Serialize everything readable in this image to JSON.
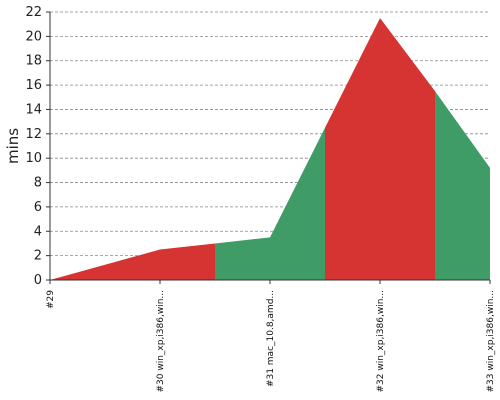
{
  "chart_data": {
    "type": "area",
    "ylabel": "mins",
    "ylim": [
      0,
      22
    ],
    "yticks": [
      0,
      2,
      4,
      6,
      8,
      10,
      12,
      14,
      16,
      18,
      20,
      22
    ],
    "grid": true,
    "categories": [
      "#29",
      "#30 win_xp,i386,win...",
      "#31 mac_10.8,amd...",
      "#32 win_xp,i386,win...",
      "#33 win_xp,i386,win..."
    ],
    "x": [
      0,
      1,
      1.5,
      2,
      2.5,
      3,
      3.5,
      4
    ],
    "values": [
      0,
      2.5,
      3.0,
      3.5,
      12.5,
      21.5,
      15.5,
      9.2
    ],
    "segments": [
      {
        "from": 0,
        "to": 1.5,
        "color": "#d63333"
      },
      {
        "from": 1.5,
        "to": 2.5,
        "color": "#3f9c67"
      },
      {
        "from": 2.5,
        "to": 3.5,
        "color": "#d63333"
      },
      {
        "from": 3.5,
        "to": 4,
        "color": "#3f9c67"
      }
    ]
  }
}
